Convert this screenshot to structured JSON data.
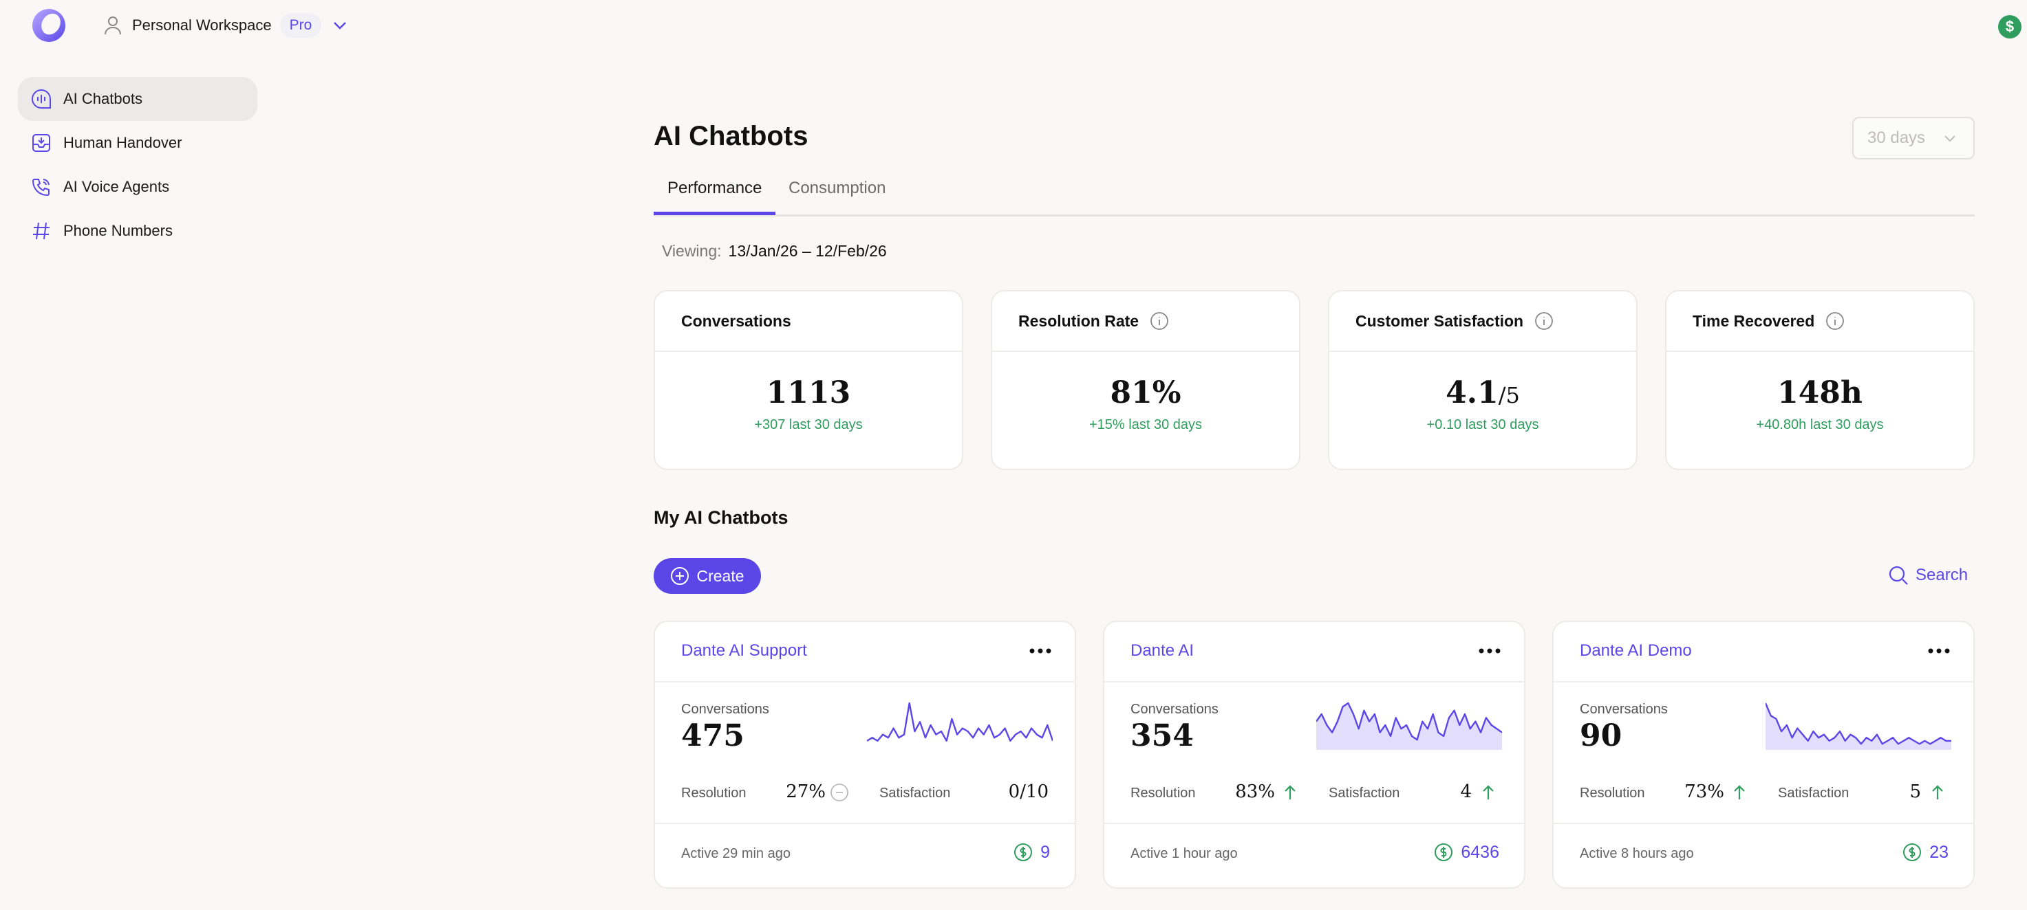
{
  "workspace": {
    "name": "Personal Workspace",
    "plan": "Pro"
  },
  "sidebar": {
    "items": [
      {
        "label": "AI Chatbots",
        "icon": "chatbot-icon",
        "active": true
      },
      {
        "label": "Human Handover",
        "icon": "inbox-icon",
        "active": false
      },
      {
        "label": "AI Voice Agents",
        "icon": "phone-call-icon",
        "active": false
      },
      {
        "label": "Phone Numbers",
        "icon": "hash-icon",
        "active": false
      }
    ]
  },
  "main": {
    "title": "AI Chatbots",
    "range": {
      "value": "30 days"
    },
    "tabs": [
      {
        "label": "Performance",
        "active": true
      },
      {
        "label": "Consumption",
        "active": false
      }
    ],
    "viewing": {
      "label": "Viewing:",
      "value": "13/Jan/26 – 12/Feb/26"
    },
    "stats": [
      {
        "title": "Conversations",
        "value": "1113",
        "suffix": "",
        "delta": "+307 last 30 days",
        "info": false
      },
      {
        "title": "Resolution Rate",
        "value": "81%",
        "suffix": "",
        "delta": "+15% last 30 days",
        "info": true
      },
      {
        "title": "Customer Satisfaction",
        "value": "4.1",
        "suffix": "/5",
        "delta": "+0.10 last 30 days",
        "info": true
      },
      {
        "title": "Time Recovered",
        "value": "148h",
        "suffix": "",
        "delta": "+40.80h last 30 days",
        "info": true
      }
    ],
    "section_title": "My AI Chatbots",
    "create_label": "Create",
    "search_label": "Search",
    "bots": [
      {
        "name": "Dante AI Support",
        "conversations_label": "Conversations",
        "conversations": "475",
        "resolution_label": "Resolution",
        "resolution": "27%",
        "resolution_trend": "neutral",
        "satisfaction_label": "Satisfaction",
        "satisfaction": "0/10",
        "satisfaction_trend": "none",
        "active": "Active 29 min ago",
        "credits": "9",
        "sparkline": [
          2,
          3,
          2,
          4,
          3,
          6,
          3,
          4,
          14,
          5,
          8,
          3,
          7,
          4,
          5,
          2,
          9,
          4,
          6,
          5,
          3,
          6,
          4,
          7,
          3,
          4,
          6,
          2,
          4,
          5,
          3,
          6,
          4,
          3,
          7,
          2
        ]
      },
      {
        "name": "Dante AI",
        "conversations_label": "Conversations",
        "conversations": "354",
        "resolution_label": "Resolution",
        "resolution": "83%",
        "resolution_trend": "up",
        "satisfaction_label": "Satisfaction",
        "satisfaction": "4",
        "satisfaction_trend": "up",
        "active": "Active 1 hour ago",
        "credits": "6436",
        "sparkline": [
          7,
          9,
          6,
          4,
          7,
          11,
          12,
          9,
          5,
          10,
          7,
          9,
          4,
          6,
          3,
          8,
          5,
          6,
          3,
          2,
          7,
          5,
          9,
          4,
          3,
          8,
          10,
          6,
          9,
          5,
          7,
          4,
          8,
          6,
          5,
          4
        ]
      },
      {
        "name": "Dante AI Demo",
        "conversations_label": "Conversations",
        "conversations": "90",
        "resolution_label": "Resolution",
        "resolution": "73%",
        "resolution_trend": "up",
        "satisfaction_label": "Satisfaction",
        "satisfaction": "5",
        "satisfaction_trend": "up",
        "active": "Active 8 hours ago",
        "credits": "23",
        "sparkline": [
          14,
          10,
          9,
          5,
          7,
          3,
          6,
          4,
          2,
          5,
          3,
          4,
          2,
          3,
          5,
          2,
          4,
          3,
          1,
          3,
          2,
          4,
          1,
          2,
          3,
          1,
          2,
          3,
          2,
          1,
          2,
          1,
          2,
          3,
          2,
          2
        ]
      }
    ]
  },
  "colors": {
    "accent": "#5b46e8",
    "positive": "#2f9d5e",
    "background": "#f9f8f6"
  }
}
